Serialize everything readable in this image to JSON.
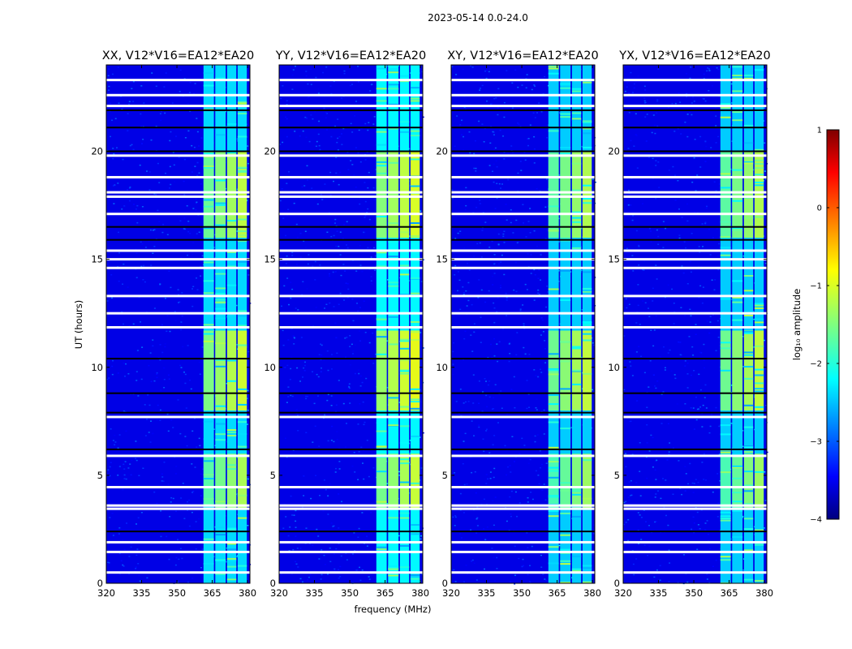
{
  "suptitle": "2023-05-14 0.0-24.0",
  "chart_data": {
    "type": "heatmap",
    "shared": {
      "xlabel": "frequency (MHz)",
      "ylabel": "UT (hours)",
      "xlim": [
        320,
        381
      ],
      "ylim": [
        0,
        24
      ],
      "xticks": [
        320,
        335,
        350,
        365,
        380
      ],
      "yticks": [
        0,
        5,
        10,
        15,
        20
      ],
      "colormap": "jet",
      "background_log_amplitude": -3.5,
      "flagged_hours_white": [
        0.5,
        1.45,
        1.9,
        3.45,
        3.6,
        4.45,
        5.9,
        7.7,
        11.85,
        12.5,
        13.3,
        14.6,
        15.0,
        15.4,
        17.1,
        17.9,
        18.1,
        18.8,
        19.8,
        22.1,
        22.6,
        23.3
      ],
      "flagged_hours_black": [
        2.4,
        6.2,
        7.9,
        8.8,
        10.4,
        15.9,
        16.5,
        20.0,
        21.1,
        21.9
      ],
      "bright_band_mhz": [
        361,
        380
      ],
      "band_gaps_mhz": [
        366,
        371,
        375.5
      ],
      "bright_hours": [
        [
          3.5,
          6.0,
          -1.4
        ],
        [
          8.0,
          11.7,
          -1.2
        ],
        [
          16.0,
          20.0,
          -1.3
        ]
      ]
    },
    "panels": [
      {
        "title": "XX, V12*V16=EA12*EA20",
        "intensity": 1.0
      },
      {
        "title": "YY, V12*V16=EA12*EA20",
        "intensity": 1.1
      },
      {
        "title": "XY, V12*V16=EA12*EA20",
        "intensity": 0.95
      },
      {
        "title": "YX, V12*V16=EA12*EA20",
        "intensity": 0.95
      }
    ],
    "colorbar": {
      "label": "log₁₀ amplitude",
      "range": [
        -4,
        1
      ],
      "ticks": [
        "1",
        "0",
        "−1",
        "−2",
        "−3",
        "−4"
      ],
      "tick_values": [
        1,
        0,
        -1,
        -2,
        -3,
        -4
      ]
    }
  }
}
